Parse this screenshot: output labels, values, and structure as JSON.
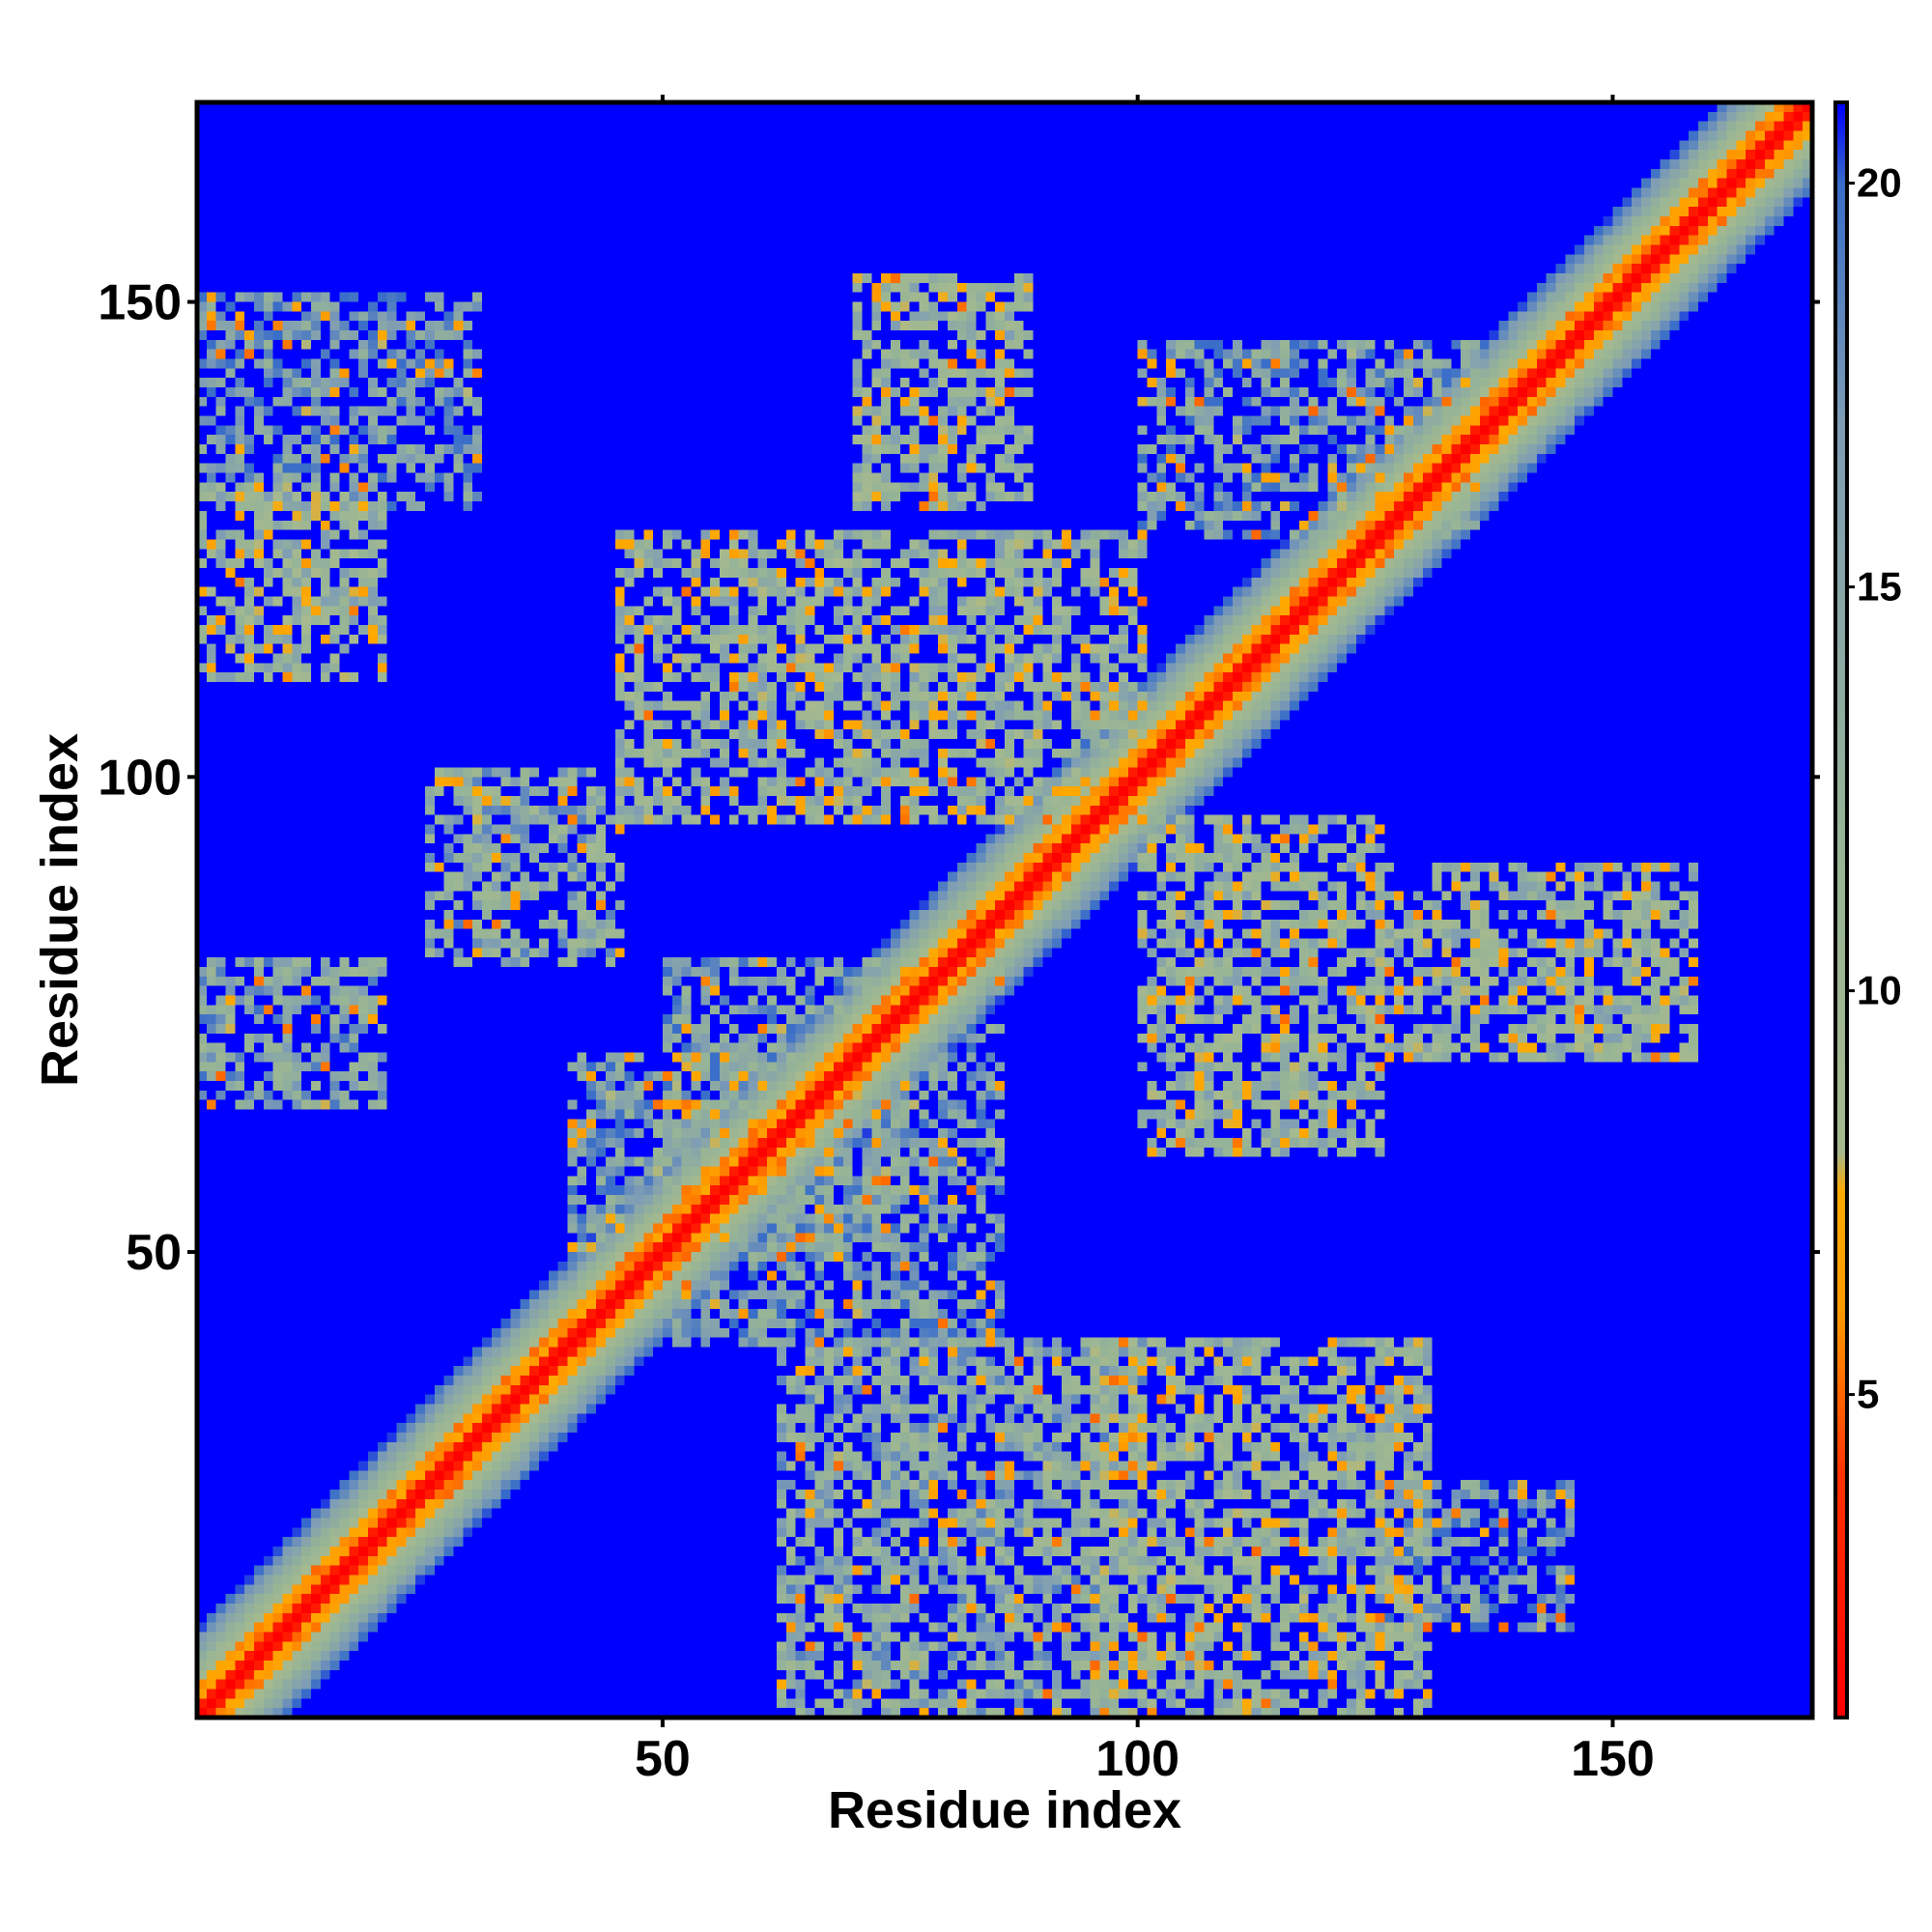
{
  "chart_data": {
    "type": "heatmap",
    "title": "",
    "xlabel": "Residue index",
    "ylabel": "Residue index",
    "n_residues": 170,
    "xlim": [
      1,
      171
    ],
    "ylim": [
      1,
      171
    ],
    "x_ticks": [
      50,
      100,
      150
    ],
    "y_ticks": [
      50,
      100,
      150
    ],
    "colorbar": {
      "range": [
        1,
        21
      ],
      "ticks": [
        5,
        10,
        15,
        20
      ],
      "stops": [
        {
          "value": 1,
          "color": "#ff0000"
        },
        {
          "value": 4,
          "color": "#ff3300"
        },
        {
          "value": 6,
          "color": "#ff9900"
        },
        {
          "value": 7.5,
          "color": "#ffaa00"
        },
        {
          "value": 8,
          "color": "#a6b98f"
        },
        {
          "value": 12,
          "color": "#96b496"
        },
        {
          "value": 17,
          "color": "#7f9db4"
        },
        {
          "value": 20,
          "color": "#3a6ec8"
        },
        {
          "value": 21,
          "color": "#0000ff"
        }
      ]
    },
    "background_value": 21,
    "contact_regions": [
      {
        "name": "diagonal",
        "residues": [
          1,
          170
        ],
        "description": "main diagonal band"
      },
      {
        "x": [
          1,
          20
        ],
        "y": [
          110,
          130
        ],
        "peak": 7
      },
      {
        "x": [
          1,
          30
        ],
        "y": [
          128,
          150
        ],
        "peak": 12
      },
      {
        "x": [
          25,
          45
        ],
        "y": [
          80,
          100
        ],
        "peak": 9
      },
      {
        "x": [
          1,
          20
        ],
        "y": [
          65,
          80
        ],
        "peak": 10
      },
      {
        "x": [
          45,
          100
        ],
        "y": [
          95,
          125
        ],
        "peak": 7
      },
      {
        "x": [
          70,
          88
        ],
        "y": [
          128,
          152
        ],
        "peak": 7
      },
      {
        "x": [
          100,
          135
        ],
        "y": [
          125,
          145
        ],
        "peak": 11
      },
      {
        "x": [
          100,
          125
        ],
        "y": [
          60,
          95
        ],
        "peak": 7
      },
      {
        "x": [
          95,
          130
        ],
        "y": [
          1,
          40
        ],
        "peak": 7
      },
      {
        "x": [
          62,
          100
        ],
        "y": [
          1,
          40
        ],
        "peak": 9
      },
      {
        "x": [
          125,
          145
        ],
        "y": [
          10,
          25
        ],
        "peak": 12
      },
      {
        "x": [
          125,
          158
        ],
        "y": [
          70,
          90
        ],
        "peak": 7
      },
      {
        "x": [
          50,
          85
        ],
        "y": [
          40,
          80
        ],
        "peak": 11
      },
      {
        "x": [
          40,
          75
        ],
        "y": [
          50,
          70
        ],
        "peak": 11
      }
    ]
  }
}
